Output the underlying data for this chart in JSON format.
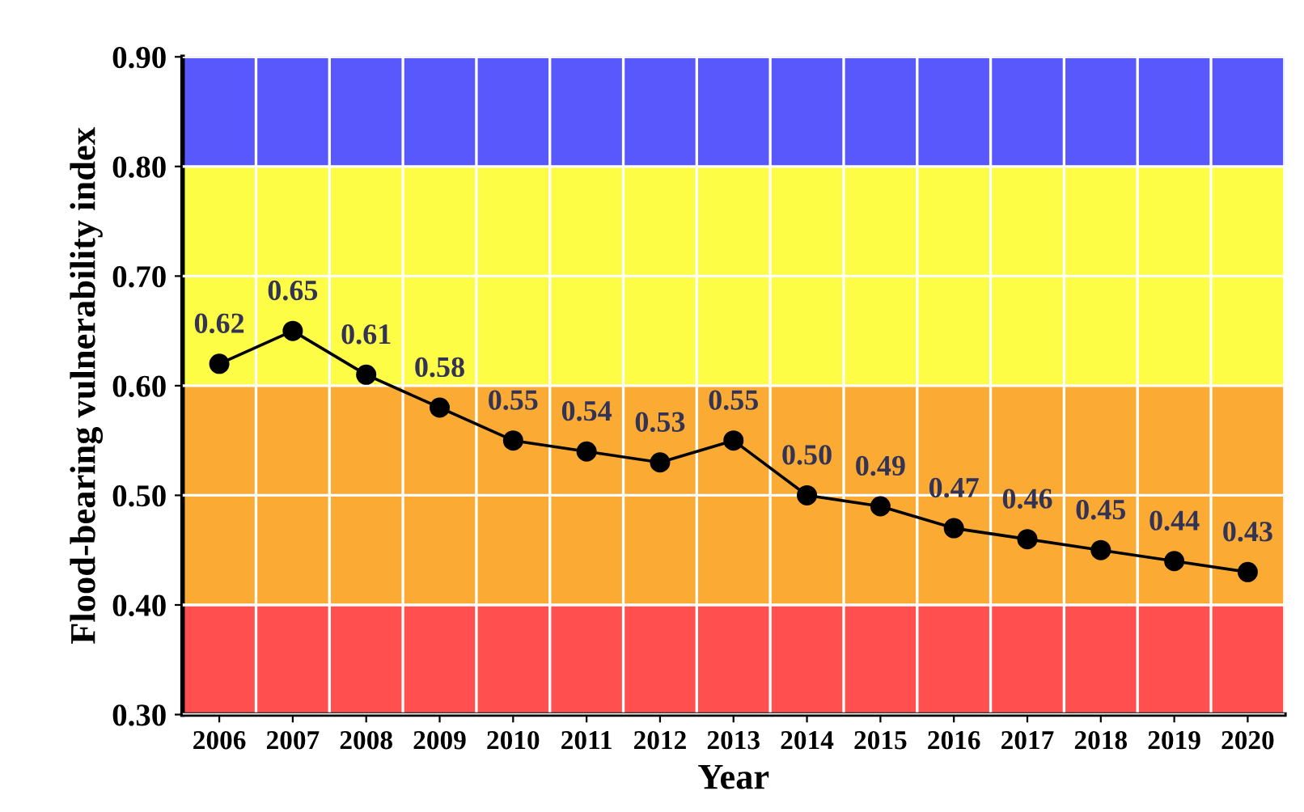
{
  "chart_data": {
    "type": "line",
    "xlabel": "Year",
    "ylabel": "Flood-bearing vulnerability index",
    "categories": [
      "2006",
      "2007",
      "2008",
      "2009",
      "2010",
      "2011",
      "2012",
      "2013",
      "2014",
      "2015",
      "2016",
      "2017",
      "2018",
      "2019",
      "2020"
    ],
    "series": [
      {
        "color": "#000000",
        "values": [
          0.62,
          0.65,
          0.61,
          0.58,
          0.55,
          0.54,
          0.53,
          0.55,
          0.5,
          0.49,
          0.47,
          0.46,
          0.45,
          0.44,
          0.43
        ],
        "value_labels": [
          "0.62",
          "0.65",
          "0.61",
          "0.58",
          "0.55",
          "0.54",
          "0.53",
          "0.55",
          "0.50",
          "0.49",
          "0.47",
          "0.46",
          "0.45",
          "0.44",
          "0.43"
        ]
      }
    ],
    "ylim": [
      0.3,
      0.9
    ],
    "yticks": [
      {
        "value": 0.3,
        "label": "0.30"
      },
      {
        "value": 0.4,
        "label": "0.40"
      },
      {
        "value": 0.5,
        "label": "0.50"
      },
      {
        "value": 0.6,
        "label": "0.60"
      },
      {
        "value": 0.7,
        "label": "0.70"
      },
      {
        "value": 0.8,
        "label": "0.80"
      },
      {
        "value": 0.9,
        "label": "0.90"
      }
    ],
    "bands": [
      {
        "axis": "y",
        "from": 0.3,
        "to": 0.4,
        "color": "#ff4f4f"
      },
      {
        "axis": "y",
        "from": 0.4,
        "to": 0.6,
        "color": "#fbab34"
      },
      {
        "axis": "y",
        "from": 0.6,
        "to": 0.8,
        "color": "#fdfd45"
      },
      {
        "axis": "y",
        "from": 0.8,
        "to": 0.9,
        "color": "#5858fc"
      }
    ],
    "grid": true,
    "marker": "circle",
    "line_style": "solid"
  }
}
